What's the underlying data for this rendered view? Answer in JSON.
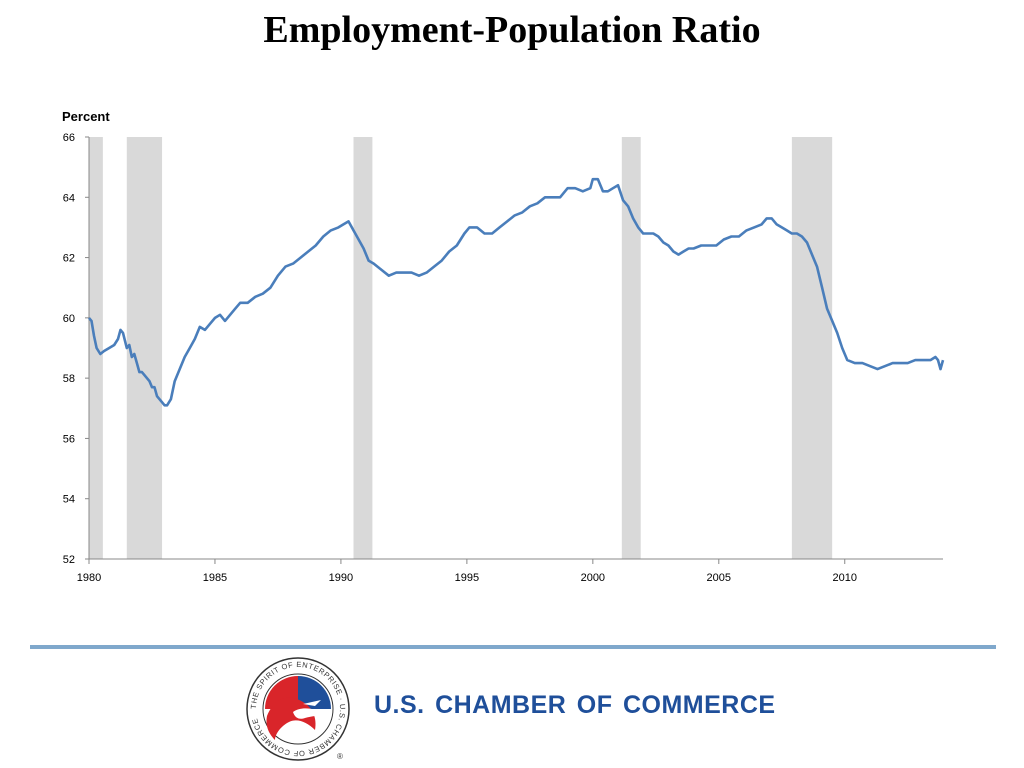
{
  "title": "Employment-Population Ratio",
  "footer": {
    "organization": "U.S. CHAMBER OF COMMERCE",
    "logo_icon": "chamber-of-commerce-seal-icon",
    "seal_text": "THE SPIRIT OF ENTERPRISE · U.S. CHAMBER OF COMMERCE",
    "registered_mark": "®"
  },
  "colors": {
    "line": "#4a7ebb",
    "recession_shading": "#d9d9d9",
    "brand_blue": "#1f4f9a",
    "rule": "#7fa8cc"
  },
  "chart_data": {
    "type": "line",
    "title": "Employment-Population Ratio",
    "ylabel": "Percent",
    "xlabel": "",
    "xlim": [
      1980,
      2013.9
    ],
    "ylim": [
      52,
      66
    ],
    "yticks": [
      52,
      54,
      56,
      58,
      60,
      62,
      64,
      66
    ],
    "xticks": [
      1980,
      1985,
      1990,
      1995,
      2000,
      2005,
      2010
    ],
    "grid": false,
    "legend": "none",
    "recession_bands": [
      [
        1980.0,
        1980.55
      ],
      [
        1981.5,
        1982.9
      ],
      [
        1990.5,
        1991.25
      ],
      [
        2001.15,
        2001.9
      ],
      [
        2007.9,
        2009.5
      ]
    ],
    "series": [
      {
        "x": [
          1980.0,
          1980.1,
          1980.2,
          1980.3,
          1980.45,
          1980.6,
          1980.8,
          1981.0,
          1981.15,
          1981.25,
          1981.35,
          1981.5,
          1981.6,
          1981.7,
          1981.8,
          1981.9,
          1982.0,
          1982.1,
          1982.3,
          1982.4,
          1982.5,
          1982.6,
          1982.7,
          1982.8,
          1982.9,
          1983.0,
          1983.1,
          1983.25,
          1983.4,
          1983.6,
          1983.8,
          1984.0,
          1984.2,
          1984.4,
          1984.6,
          1984.8,
          1985.0,
          1985.2,
          1985.4,
          1985.6,
          1985.8,
          1986.0,
          1986.3,
          1986.6,
          1986.9,
          1987.2,
          1987.5,
          1987.8,
          1988.1,
          1988.4,
          1988.7,
          1989.0,
          1989.3,
          1989.6,
          1989.9,
          1990.1,
          1990.3,
          1990.5,
          1990.7,
          1990.9,
          1991.1,
          1991.3,
          1991.6,
          1991.9,
          1992.2,
          1992.5,
          1992.8,
          1993.1,
          1993.4,
          1993.7,
          1994.0,
          1994.3,
          1994.6,
          1994.9,
          1995.1,
          1995.4,
          1995.7,
          1996.0,
          1996.3,
          1996.6,
          1996.9,
          1997.2,
          1997.5,
          1997.8,
          1998.1,
          1998.4,
          1998.7,
          1999.0,
          1999.3,
          1999.6,
          1999.9,
          2000.0,
          2000.2,
          2000.4,
          2000.6,
          2000.8,
          2001.0,
          2001.2,
          2001.4,
          2001.6,
          2001.8,
          2002.0,
          2002.2,
          2002.4,
          2002.6,
          2002.8,
          2003.0,
          2003.2,
          2003.4,
          2003.6,
          2003.8,
          2004.0,
          2004.3,
          2004.6,
          2004.9,
          2005.2,
          2005.5,
          2005.8,
          2006.1,
          2006.4,
          2006.7,
          2006.9,
          2007.1,
          2007.3,
          2007.5,
          2007.7,
          2007.9,
          2008.1,
          2008.3,
          2008.5,
          2008.7,
          2008.9,
          2009.1,
          2009.3,
          2009.5,
          2009.7,
          2009.9,
          2010.1,
          2010.4,
          2010.7,
          2011.0,
          2011.3,
          2011.6,
          2011.9,
          2012.2,
          2012.5,
          2012.8,
          2013.1,
          2013.4,
          2013.6,
          2013.7,
          2013.8,
          2013.9
        ],
        "values": [
          60.0,
          59.9,
          59.4,
          59.0,
          58.8,
          58.9,
          59.0,
          59.1,
          59.3,
          59.6,
          59.5,
          59.0,
          59.1,
          58.7,
          58.8,
          58.5,
          58.2,
          58.2,
          58.0,
          57.9,
          57.7,
          57.7,
          57.4,
          57.3,
          57.2,
          57.1,
          57.1,
          57.3,
          57.9,
          58.3,
          58.7,
          59.0,
          59.3,
          59.7,
          59.6,
          59.8,
          60.0,
          60.1,
          59.9,
          60.1,
          60.3,
          60.5,
          60.5,
          60.7,
          60.8,
          61.0,
          61.4,
          61.7,
          61.8,
          62.0,
          62.2,
          62.4,
          62.7,
          62.9,
          63.0,
          63.1,
          63.2,
          62.9,
          62.6,
          62.3,
          61.9,
          61.8,
          61.6,
          61.4,
          61.5,
          61.5,
          61.5,
          61.4,
          61.5,
          61.7,
          61.9,
          62.2,
          62.4,
          62.8,
          63.0,
          63.0,
          62.8,
          62.8,
          63.0,
          63.2,
          63.4,
          63.5,
          63.7,
          63.8,
          64.0,
          64.0,
          64.0,
          64.3,
          64.3,
          64.2,
          64.3,
          64.6,
          64.6,
          64.2,
          64.2,
          64.3,
          64.4,
          63.9,
          63.7,
          63.3,
          63.0,
          62.8,
          62.8,
          62.8,
          62.7,
          62.5,
          62.4,
          62.2,
          62.1,
          62.2,
          62.3,
          62.3,
          62.4,
          62.4,
          62.4,
          62.6,
          62.7,
          62.7,
          62.9,
          63.0,
          63.1,
          63.3,
          63.3,
          63.1,
          63.0,
          62.9,
          62.8,
          62.8,
          62.7,
          62.5,
          62.1,
          61.7,
          61.0,
          60.3,
          59.9,
          59.5,
          59.0,
          58.6,
          58.5,
          58.5,
          58.4,
          58.3,
          58.4,
          58.5,
          58.5,
          58.5,
          58.6,
          58.6,
          58.6,
          58.7,
          58.6,
          58.3,
          58.6
        ]
      }
    ]
  }
}
